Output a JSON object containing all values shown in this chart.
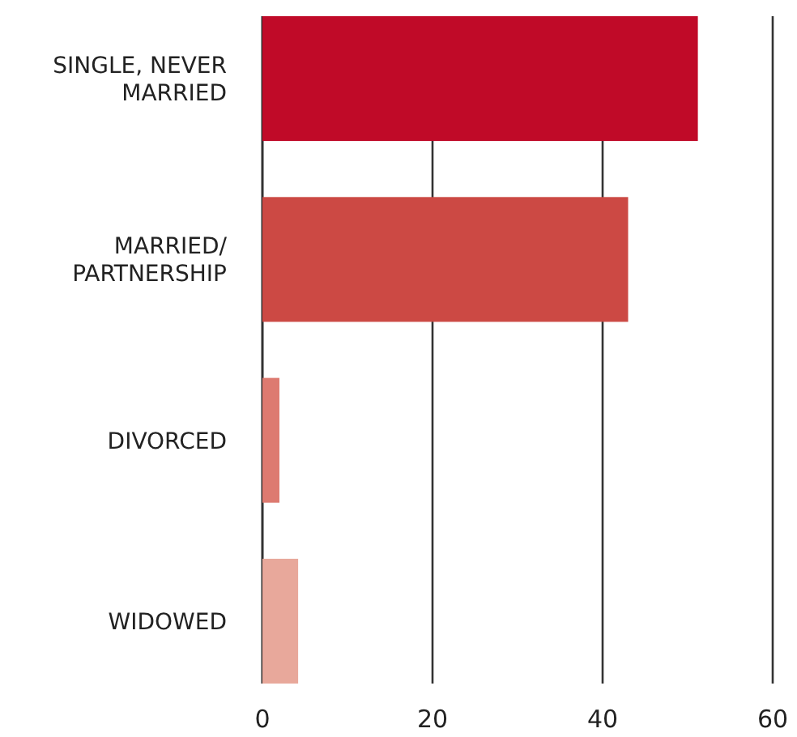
{
  "chart_data": {
    "type": "bar",
    "orientation": "horizontal",
    "categories": [
      "SINGLE, NEVER MARRIED",
      "MARRIED/PARTNERSHIP",
      "DIVORCED",
      "WIDOWED"
    ],
    "values": [
      51.2,
      43.0,
      2.0,
      4.2
    ],
    "colors": [
      "#c00a28",
      "#cc4944",
      "#dd7a70",
      "#e8a89b"
    ],
    "xlim": [
      0,
      60
    ],
    "xticks": [
      0,
      20,
      40,
      60
    ],
    "grid": "x"
  }
}
